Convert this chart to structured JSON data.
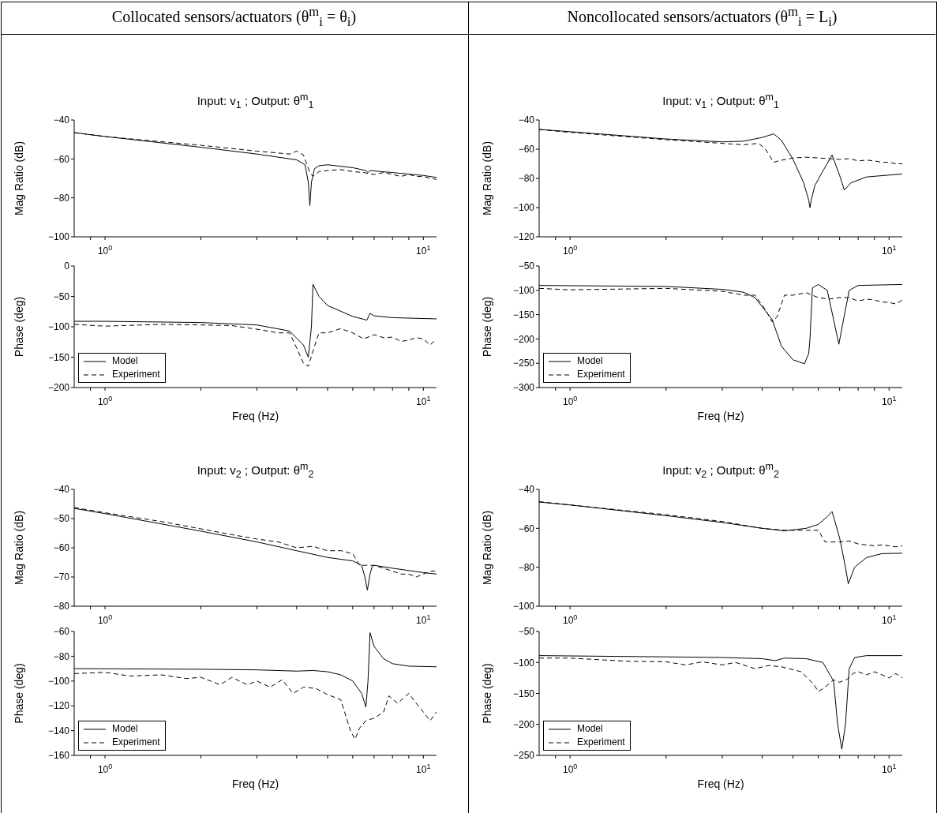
{
  "chart_data": [
    {
      "type": "other",
      "title": "Collocated sensors/actuators (θ$^{m}$$_{i}$ = θ$_{i}$)"
    },
    {
      "type": "other",
      "title": "Noncollocated sensors/actuators (θ$^{m}$$_{i}$ = L$_{i}$)"
    },
    {
      "type": "line",
      "title": "Input: v$_{1}$ ; Output: θ$^{m}$$_{1}$",
      "ylabel": "Mag Ratio (dB)",
      "log": "x",
      "xlim": [
        0.8,
        11
      ],
      "xticks": [
        {
          "value": 0.9,
          "label": null
        },
        {
          "value": 1,
          "label": "10$^{0}$"
        },
        {
          "value": 2,
          "label": null
        },
        {
          "value": 3,
          "label": null
        },
        {
          "value": 4,
          "label": null
        },
        {
          "value": 5,
          "label": null
        },
        {
          "value": 6,
          "label": null
        },
        {
          "value": 7,
          "label": null
        },
        {
          "value": 8,
          "label": null
        },
        {
          "value": 9,
          "label": null
        },
        {
          "value": 10,
          "label": "10$^{1}$"
        }
      ],
      "ylim": [
        -100,
        -40
      ],
      "yticks": [
        -100,
        -80,
        -60,
        -40
      ],
      "series": [
        {
          "color": "#000000",
          "line_style": "solid",
          "x": [
            0.8,
            1,
            2,
            3,
            4,
            4.25,
            4.35,
            4.4,
            4.45,
            4.55,
            4.7,
            5,
            6,
            6.6,
            6.7,
            6.8,
            8,
            10,
            11
          ],
          "values": [
            -46.5,
            -48.5,
            -54,
            -57.5,
            -60.5,
            -63,
            -72,
            -84,
            -72,
            -65,
            -63.5,
            -63,
            -64.5,
            -66,
            -67,
            -66,
            -67,
            -68.5,
            -69.5
          ]
        },
        {
          "color": "#000000",
          "line_style": "dashed",
          "x": [
            0.8,
            1,
            2,
            3,
            3.8,
            4,
            4.2,
            4.4,
            4.5,
            4.7,
            5,
            5.5,
            6,
            6.5,
            7,
            7.5,
            8,
            8.5,
            9,
            9.5,
            10,
            10.5,
            11
          ],
          "values": [
            -46.5,
            -48.5,
            -53,
            -56,
            -57.5,
            -56,
            -58,
            -67,
            -69,
            -66.5,
            -66,
            -65.5,
            -66.5,
            -67,
            -68,
            -67,
            -68,
            -69,
            -68,
            -69,
            -69,
            -70,
            -70.5
          ]
        }
      ]
    },
    {
      "type": "line",
      "title": "Input: v$_{1}$ ; Output: θ$^{m}$$_{1}$",
      "ylabel": "Mag Ratio (dB)",
      "log": "x",
      "xlim": [
        0.8,
        11
      ],
      "xticks": [
        {
          "value": 0.9,
          "label": null
        },
        {
          "value": 1,
          "label": "10$^{0}$"
        },
        {
          "value": 2,
          "label": null
        },
        {
          "value": 3,
          "label": null
        },
        {
          "value": 4,
          "label": null
        },
        {
          "value": 5,
          "label": null
        },
        {
          "value": 6,
          "label": null
        },
        {
          "value": 7,
          "label": null
        },
        {
          "value": 8,
          "label": null
        },
        {
          "value": 9,
          "label": null
        },
        {
          "value": 10,
          "label": "10$^{1}$"
        }
      ],
      "ylim": [
        -120,
        -40
      ],
      "yticks": [
        -120,
        -100,
        -80,
        -60,
        -40
      ],
      "series": [
        {
          "color": "#000000",
          "line_style": "solid",
          "x": [
            0.8,
            1,
            2,
            3,
            3.5,
            4,
            4.35,
            4.6,
            5,
            5.4,
            5.6,
            5.65,
            5.7,
            5.85,
            6.2,
            6.63,
            7,
            7.24,
            7.6,
            8.5,
            11
          ],
          "values": [
            -46.5,
            -48,
            -53,
            -55,
            -54.5,
            -52,
            -49.5,
            -54,
            -67,
            -83,
            -95,
            -100,
            -95,
            -85,
            -75,
            -64,
            -78,
            -88,
            -83,
            -79,
            -77
          ]
        },
        {
          "color": "#000000",
          "line_style": "dashed",
          "x": [
            0.8,
            1,
            2,
            3,
            3.5,
            3.9,
            4.1,
            4.35,
            4.5,
            5,
            5.5,
            6,
            6.5,
            7,
            7.5,
            8,
            8.5,
            9,
            9.5,
            10,
            10.5,
            11
          ],
          "values": [
            -46.5,
            -48.5,
            -53.5,
            -56,
            -57,
            -56,
            -60,
            -69,
            -68,
            -66,
            -65.5,
            -66,
            -66.5,
            -67,
            -66.5,
            -68,
            -67.5,
            -68,
            -69,
            -69,
            -70,
            -70
          ]
        }
      ]
    },
    {
      "type": "line",
      "xlabel": "Freq (Hz)",
      "ylabel": "Phase (deg)",
      "log": "x",
      "legend": "bottom left",
      "xlim": [
        0.8,
        11
      ],
      "xticks": [
        {
          "value": 0.9,
          "label": null
        },
        {
          "value": 1,
          "label": "10$^{0}$"
        },
        {
          "value": 2,
          "label": null
        },
        {
          "value": 3,
          "label": null
        },
        {
          "value": 4,
          "label": null
        },
        {
          "value": 5,
          "label": null
        },
        {
          "value": 6,
          "label": null
        },
        {
          "value": 7,
          "label": null
        },
        {
          "value": 8,
          "label": null
        },
        {
          "value": 9,
          "label": null
        },
        {
          "value": 10,
          "label": "10$^{1}$"
        }
      ],
      "ylim": [
        -200,
        0
      ],
      "yticks": [
        -200,
        -150,
        -100,
        -50,
        0
      ],
      "series": [
        {
          "name": "Model",
          "color": "#000000",
          "line_style": "solid",
          "x": [
            0.8,
            1,
            2,
            3,
            3.8,
            4.2,
            4.35,
            4.45,
            4.5,
            4.7,
            5,
            6,
            6.65,
            6.8,
            7,
            8,
            11
          ],
          "values": [
            -91,
            -91,
            -93,
            -97,
            -107,
            -130,
            -150,
            -100,
            -30,
            -50,
            -65,
            -83,
            -89,
            -78,
            -82,
            -85,
            -87
          ]
        },
        {
          "name": "Experiment",
          "color": "#000000",
          "line_style": "dashed",
          "x": [
            0.8,
            1,
            1.5,
            2,
            2.5,
            3,
            3.5,
            3.8,
            4,
            4.2,
            4.35,
            4.5,
            4.7,
            5,
            5.5,
            6,
            6.5,
            7,
            7.5,
            8,
            8.5,
            9,
            9.5,
            10,
            10.5,
            11
          ],
          "values": [
            -96,
            -99,
            -96,
            -97,
            -98,
            -104,
            -110,
            -110,
            -135,
            -160,
            -165,
            -140,
            -110,
            -110,
            -103,
            -110,
            -120,
            -113,
            -118,
            -117,
            -124,
            -122,
            -118,
            -120,
            -130,
            -120
          ]
        }
      ]
    },
    {
      "type": "line",
      "xlabel": "Freq (Hz)",
      "ylabel": "Phase (deg)",
      "log": "x",
      "legend": "bottom left",
      "xlim": [
        0.8,
        11
      ],
      "xticks": [
        {
          "value": 0.9,
          "label": null
        },
        {
          "value": 1,
          "label": "10$^{0}$"
        },
        {
          "value": 2,
          "label": null
        },
        {
          "value": 3,
          "label": null
        },
        {
          "value": 4,
          "label": null
        },
        {
          "value": 5,
          "label": null
        },
        {
          "value": 6,
          "label": null
        },
        {
          "value": 7,
          "label": null
        },
        {
          "value": 8,
          "label": null
        },
        {
          "value": 9,
          "label": null
        },
        {
          "value": 10,
          "label": "10$^{1}$"
        }
      ],
      "ylim": [
        -300,
        -50
      ],
      "yticks": [
        -300,
        -250,
        -200,
        -150,
        -100,
        -50
      ],
      "series": [
        {
          "name": "Model",
          "color": "#000000",
          "line_style": "solid",
          "x": [
            0.8,
            2,
            3,
            3.5,
            3.8,
            4.3,
            4.6,
            5,
            5.43,
            5.6,
            5.65,
            5.75,
            6,
            6.4,
            6.7,
            6.96,
            7.2,
            7.5,
            8,
            11
          ],
          "values": [
            -90,
            -92,
            -98,
            -104,
            -115,
            -160,
            -215,
            -243,
            -251,
            -230,
            -200,
            -95,
            -88,
            -100,
            -160,
            -211,
            -160,
            -100,
            -90,
            -88
          ]
        },
        {
          "name": "Experiment",
          "color": "#000000",
          "line_style": "dashed",
          "x": [
            0.8,
            1,
            2,
            3,
            3.5,
            3.8,
            4.1,
            4.3,
            4.45,
            4.7,
            5,
            5.5,
            6,
            6.5,
            7,
            7.5,
            8,
            8.5,
            9,
            9.5,
            10,
            10.5,
            11
          ],
          "values": [
            -96,
            -99,
            -96,
            -102,
            -110,
            -110,
            -140,
            -165,
            -155,
            -110,
            -110,
            -105,
            -115,
            -118,
            -115,
            -115,
            -122,
            -118,
            -120,
            -124,
            -125,
            -128,
            -120
          ]
        }
      ]
    },
    {
      "type": "line",
      "title": "Input: v$_{2}$ ; Output: θ$^{m}$$_{2}$",
      "ylabel": "Mag Ratio (dB)",
      "log": "x",
      "xlim": [
        0.8,
        11
      ],
      "xticks": [
        {
          "value": 0.9,
          "label": null
        },
        {
          "value": 1,
          "label": "10$^{0}$"
        },
        {
          "value": 2,
          "label": null
        },
        {
          "value": 3,
          "label": null
        },
        {
          "value": 4,
          "label": null
        },
        {
          "value": 5,
          "label": null
        },
        {
          "value": 6,
          "label": null
        },
        {
          "value": 7,
          "label": null
        },
        {
          "value": 8,
          "label": null
        },
        {
          "value": 9,
          "label": null
        },
        {
          "value": 10,
          "label": "10$^{1}$"
        }
      ],
      "ylim": [
        -80,
        -40
      ],
      "yticks": [
        -80,
        -70,
        -60,
        -50,
        -40
      ],
      "series": [
        {
          "color": "#000000",
          "line_style": "solid",
          "x": [
            0.8,
            1,
            2,
            3,
            4,
            5,
            6,
            6.4,
            6.55,
            6.67,
            6.8,
            6.9,
            7,
            8,
            10,
            11
          ],
          "values": [
            -46.5,
            -48.3,
            -54.3,
            -58,
            -61,
            -63.3,
            -64.5,
            -66,
            -70,
            -74.5,
            -69,
            -66.5,
            -66,
            -67,
            -68.5,
            -69
          ]
        },
        {
          "color": "#000000",
          "line_style": "dashed",
          "x": [
            0.8,
            1,
            1.5,
            2,
            2.5,
            3,
            3.5,
            4,
            4.5,
            5,
            5.5,
            6,
            6.3,
            6.6,
            7,
            7.5,
            8,
            8.5,
            9,
            9.5,
            10,
            10.5,
            11
          ],
          "values": [
            -46.2,
            -48,
            -51,
            -53.5,
            -55.5,
            -57,
            -58,
            -60,
            -59.5,
            -61,
            -61,
            -62,
            -66,
            -66,
            -66,
            -67,
            -68,
            -69,
            -69,
            -70,
            -69,
            -68,
            -68
          ]
        }
      ]
    },
    {
      "type": "line",
      "title": "Input: v$_{2}$ ; Output: θ$^{m}$$_{2}$",
      "ylabel": "Mag Ratio (dB)",
      "log": "x",
      "xlim": [
        0.8,
        11
      ],
      "xticks": [
        {
          "value": 0.9,
          "label": null
        },
        {
          "value": 1,
          "label": "10$^{0}$"
        },
        {
          "value": 2,
          "label": null
        },
        {
          "value": 3,
          "label": null
        },
        {
          "value": 4,
          "label": null
        },
        {
          "value": 5,
          "label": null
        },
        {
          "value": 6,
          "label": null
        },
        {
          "value": 7,
          "label": null
        },
        {
          "value": 8,
          "label": null
        },
        {
          "value": 9,
          "label": null
        },
        {
          "value": 10,
          "label": "10$^{1}$"
        }
      ],
      "ylim": [
        -100,
        -40
      ],
      "yticks": [
        -100,
        -80,
        -60,
        -40
      ],
      "series": [
        {
          "color": "#000000",
          "line_style": "solid",
          "x": [
            0.8,
            1,
            2,
            3,
            4,
            4.7,
            5.5,
            6,
            6.4,
            6.63,
            7,
            7.3,
            7.45,
            7.8,
            8.5,
            9.5,
            11
          ],
          "values": [
            -46.5,
            -48,
            -53.5,
            -57,
            -60,
            -61.3,
            -60,
            -58,
            -54,
            -51.4,
            -65,
            -80,
            -88.5,
            -80,
            -75,
            -73,
            -72.8
          ]
        },
        {
          "color": "#000000",
          "line_style": "dashed",
          "x": [
            0.8,
            1,
            2,
            3,
            4,
            4.7,
            5.5,
            6,
            6.3,
            6.5,
            7,
            7.5,
            8,
            8.5,
            9,
            9.5,
            10,
            10.5,
            11
          ],
          "values": [
            -46.3,
            -48,
            -53,
            -56.5,
            -60,
            -61,
            -61,
            -61,
            -67,
            -67,
            -67,
            -66.5,
            -68,
            -68.5,
            -69,
            -68.5,
            -69,
            -69.5,
            -69
          ]
        }
      ]
    },
    {
      "type": "line",
      "xlabel": "Freq (Hz)",
      "ylabel": "Phase (deg)",
      "log": "x",
      "legend": "bottom left",
      "xlim": [
        0.8,
        11
      ],
      "xticks": [
        {
          "value": 0.9,
          "label": null
        },
        {
          "value": 1,
          "label": "10$^{0}$"
        },
        {
          "value": 2,
          "label": null
        },
        {
          "value": 3,
          "label": null
        },
        {
          "value": 4,
          "label": null
        },
        {
          "value": 5,
          "label": null
        },
        {
          "value": 6,
          "label": null
        },
        {
          "value": 7,
          "label": null
        },
        {
          "value": 8,
          "label": null
        },
        {
          "value": 9,
          "label": null
        },
        {
          "value": 10,
          "label": "10$^{1}$"
        }
      ],
      "ylim": [
        -160,
        -60
      ],
      "yticks": [
        -160,
        -140,
        -120,
        -100,
        -80,
        -60
      ],
      "series": [
        {
          "name": "Model",
          "color": "#000000",
          "line_style": "solid",
          "x": [
            0.8,
            2,
            3,
            4,
            4.5,
            5,
            5.5,
            6,
            6.4,
            6.6,
            6.7,
            6.8,
            7,
            7.5,
            8,
            9,
            11
          ],
          "values": [
            -90,
            -90.5,
            -91,
            -92,
            -91.5,
            -92.5,
            -95,
            -100,
            -110,
            -121,
            -100,
            -61,
            -72,
            -82,
            -86,
            -88,
            -88.5
          ]
        },
        {
          "name": "Experiment",
          "color": "#000000",
          "line_style": "dashed",
          "x": [
            0.8,
            1,
            1.2,
            1.5,
            1.8,
            2,
            2.3,
            2.5,
            2.8,
            3,
            3.3,
            3.6,
            3.9,
            4.2,
            4.6,
            5,
            5.5,
            5.9,
            6.1,
            6.3,
            6.6,
            7,
            7.5,
            7.8,
            8.3,
            9,
            9.5,
            10,
            10.5,
            11
          ],
          "values": [
            -94,
            -93,
            -96,
            -95,
            -98,
            -97,
            -103,
            -97,
            -103,
            -100,
            -105,
            -99,
            -110,
            -105,
            -106,
            -111,
            -115,
            -140,
            -147,
            -138,
            -132,
            -130,
            -125,
            -112,
            -118,
            -110,
            -118,
            -125,
            -132,
            -125
          ]
        }
      ]
    },
    {
      "type": "line",
      "xlabel": "Freq (Hz)",
      "ylabel": "Phase (deg)",
      "log": "x",
      "legend": "bottom left",
      "xlim": [
        0.8,
        11
      ],
      "xticks": [
        {
          "value": 0.9,
          "label": null
        },
        {
          "value": 1,
          "label": "10$^{0}$"
        },
        {
          "value": 2,
          "label": null
        },
        {
          "value": 3,
          "label": null
        },
        {
          "value": 4,
          "label": null
        },
        {
          "value": 5,
          "label": null
        },
        {
          "value": 6,
          "label": null
        },
        {
          "value": 7,
          "label": null
        },
        {
          "value": 8,
          "label": null
        },
        {
          "value": 9,
          "label": null
        },
        {
          "value": 10,
          "label": "10$^{1}$"
        }
      ],
      "ylim": [
        -250,
        -50
      ],
      "yticks": [
        -250,
        -200,
        -150,
        -100,
        -50
      ],
      "series": [
        {
          "name": "Model",
          "color": "#000000",
          "line_style": "solid",
          "x": [
            0.8,
            2,
            3,
            4,
            4.4,
            4.7,
            5.5,
            6.2,
            6.7,
            6.9,
            7.11,
            7.3,
            7.5,
            7.8,
            8.5,
            11
          ],
          "values": [
            -89,
            -91,
            -92,
            -94,
            -97,
            -93,
            -94,
            -100,
            -130,
            -200,
            -240,
            -200,
            -110,
            -92,
            -89,
            -89
          ]
        },
        {
          "name": "Experiment",
          "color": "#000000",
          "line_style": "dashed",
          "x": [
            0.8,
            1,
            1.5,
            2,
            2.3,
            2.6,
            3,
            3.3,
            3.8,
            4.2,
            4.6,
            5.3,
            5.8,
            6,
            6.3,
            6.7,
            7,
            7.4,
            7.7,
            8,
            8.5,
            9,
            9.5,
            10,
            10.5,
            11
          ],
          "values": [
            -93,
            -93,
            -98,
            -99,
            -104,
            -99,
            -104,
            -100,
            -110,
            -105,
            -107,
            -115,
            -135,
            -147,
            -140,
            -128,
            -132,
            -127,
            -118,
            -115,
            -120,
            -115,
            -120,
            -125,
            -118,
            -125
          ]
        }
      ]
    }
  ]
}
